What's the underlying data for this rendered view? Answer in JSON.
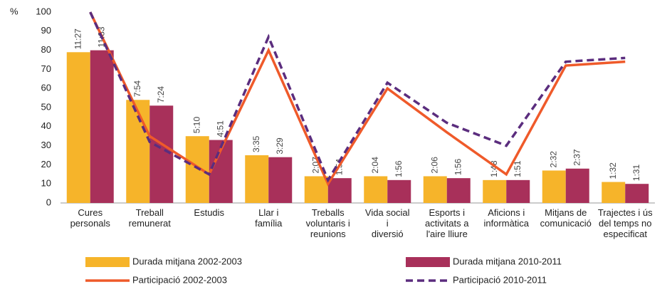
{
  "chart_data": {
    "type": "bar_line",
    "y_unit": "%",
    "categories": [
      [
        "Cures",
        "personals"
      ],
      [
        "Treball",
        "remunerat"
      ],
      [
        "Estudis"
      ],
      [
        "Llar i",
        "família"
      ],
      [
        "Treballs",
        "voluntaris i",
        "reunions"
      ],
      [
        "Vida social",
        "i",
        "diversió"
      ],
      [
        "Esports i",
        "activitats a",
        "l'aire lliure"
      ],
      [
        "Aficions i",
        "informàtica"
      ],
      [
        "Mitjans de",
        "comunicació"
      ],
      [
        "Trajectes i ús",
        "del temps no",
        "especificat"
      ]
    ],
    "series": [
      {
        "name": "Durada mitjana 2002-2003",
        "kind": "bar",
        "color": "#f6b42a",
        "values": [
          79,
          54,
          35,
          25,
          14,
          14,
          14,
          12,
          17,
          11
        ],
        "duration_labels": [
          "11:27",
          "7:54",
          "5:10",
          "3:35",
          "2:07",
          "2:04",
          "2:06",
          "1:48",
          "2:32",
          "1:32"
        ]
      },
      {
        "name": "Durada mitjana 2010-2011",
        "kind": "bar",
        "color": "#a8305a",
        "values": [
          80,
          51,
          33,
          24,
          13,
          12,
          13,
          12,
          18,
          10
        ],
        "duration_labels": [
          "11:33",
          "7:24",
          "4:51",
          "3:29",
          "1:54",
          "1:56",
          "1:56",
          "1:51",
          "2:37",
          "1:31"
        ]
      },
      {
        "name": "Participació 2002-2003",
        "kind": "line",
        "color": "#ef5a2a",
        "dashed": false,
        "values": [
          100,
          35,
          15,
          80,
          10,
          60,
          37,
          15,
          72,
          74
        ]
      },
      {
        "name": "Participació 2010-2011",
        "kind": "line",
        "color": "#5b2d7e",
        "dashed": true,
        "values": [
          100,
          32,
          15,
          87,
          12,
          63,
          42,
          30,
          74,
          76
        ]
      }
    ],
    "ylim": [
      0,
      100
    ],
    "yticks": [
      0,
      10,
      20,
      30,
      40,
      50,
      60,
      70,
      80,
      90,
      100
    ],
    "grid": false
  }
}
